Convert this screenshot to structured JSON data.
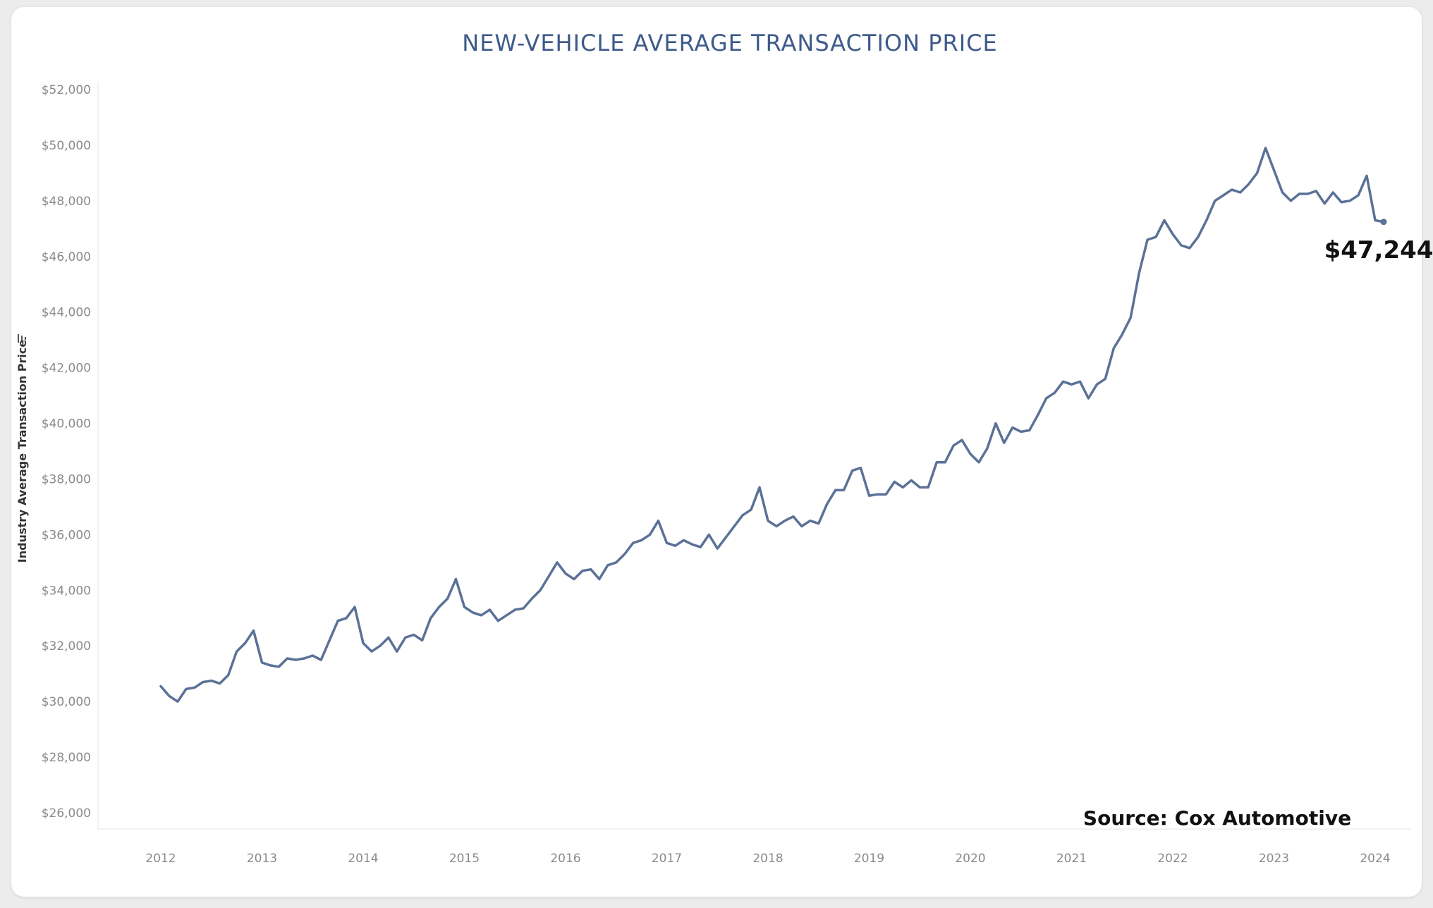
{
  "chart_data": {
    "type": "line",
    "title": "NEW-VEHICLE AVERAGE TRANSACTION PRICE",
    "ylabel": "Industry Average Transaction Price",
    "ylabel_icon": "sort-descending-icon",
    "xlabel": "",
    "ylim": [
      25500,
      52500
    ],
    "y_ticks": [
      26000,
      28000,
      30000,
      32000,
      34000,
      36000,
      38000,
      40000,
      42000,
      44000,
      46000,
      48000,
      50000,
      52000
    ],
    "y_tick_labels": [
      "$26,000",
      "$28,000",
      "$30,000",
      "$32,000",
      "$34,000",
      "$36,000",
      "$38,000",
      "$40,000",
      "$42,000",
      "$44,000",
      "$46,000",
      "$48,000",
      "$50,000",
      "$52,000"
    ],
    "x_tick_labels": [
      "2012",
      "2013",
      "2014",
      "2015",
      "2016",
      "2017",
      "2018",
      "2019",
      "2020",
      "2021",
      "2022",
      "2023",
      "2024"
    ],
    "x_start": 2012.0,
    "x_step_months": 1,
    "grid": false,
    "line_color": "#5b7197",
    "series": [
      {
        "name": "Industry Average Transaction Price",
        "values": [
          30550,
          30200,
          30000,
          30450,
          30500,
          30700,
          30750,
          30650,
          30950,
          31800,
          32100,
          32550,
          31400,
          31300,
          31250,
          31550,
          31500,
          31550,
          31650,
          31500,
          32200,
          32900,
          33000,
          33400,
          32100,
          31800,
          32000,
          32300,
          31800,
          32300,
          32400,
          32200,
          33000,
          33400,
          33700,
          34400,
          33400,
          33200,
          33100,
          33300,
          32900,
          33100,
          33300,
          33350,
          33700,
          34000,
          34500,
          35000,
          34600,
          34400,
          34700,
          34750,
          34400,
          34900,
          35000,
          35300,
          35700,
          35800,
          36000,
          36500,
          35700,
          35600,
          35800,
          35650,
          35550,
          36000,
          35500,
          35900,
          36300,
          36700,
          36900,
          37700,
          36500,
          36300,
          36500,
          36650,
          36300,
          36500,
          36400,
          37100,
          37600,
          37600,
          38300,
          38400,
          37400,
          37450,
          37450,
          37900,
          37700,
          37950,
          37700,
          37700,
          38600,
          38600,
          39200,
          39400,
          38900,
          38600,
          39100,
          40000,
          39300,
          39850,
          39700,
          39750,
          40300,
          40900,
          41100,
          41500,
          41400,
          41500,
          40900,
          41400,
          41600,
          42700,
          43200,
          43800,
          45400,
          46600,
          46700,
          47300,
          46800,
          46400,
          46300,
          46700,
          47300,
          48000,
          48200,
          48400,
          48300,
          48600,
          49000,
          49900,
          49100,
          48300,
          48000,
          48250,
          48250,
          48350,
          47900,
          48300,
          47950,
          48000,
          48200,
          48900,
          47300,
          47244
        ]
      }
    ],
    "last_value_label": "$47,244",
    "annotation": "Source: Cox Automotive"
  }
}
